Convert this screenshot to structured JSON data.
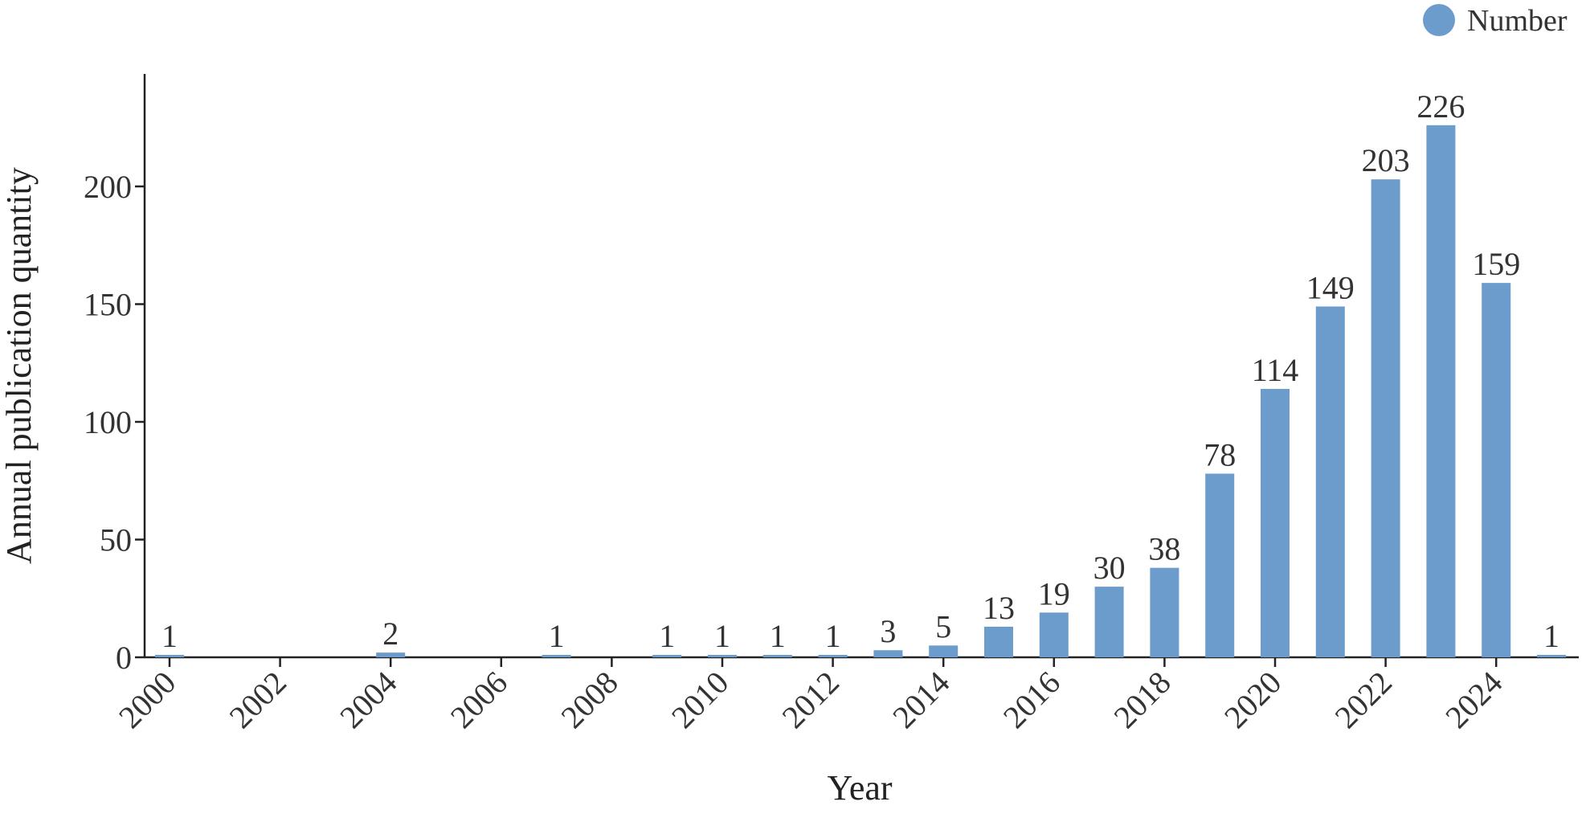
{
  "chart_data": {
    "type": "bar",
    "xlabel": "Year",
    "ylabel": "Annual publication quantity",
    "x_tick_labels": [
      "2000",
      "2002",
      "2004",
      "2006",
      "2008",
      "2010",
      "2012",
      "2014",
      "2016",
      "2018",
      "2020",
      "2022",
      "2024"
    ],
    "y_tick_labels": [
      "0",
      "50",
      "100",
      "150",
      "200"
    ],
    "ylim": [
      0,
      240
    ],
    "legend": {
      "position": "top-right",
      "entries": [
        "Number"
      ]
    },
    "grid": false,
    "series": [
      {
        "name": "Number",
        "color": "#6b9ccb",
        "points": [
          {
            "year": 2000,
            "value": 1
          },
          {
            "year": 2004,
            "value": 2
          },
          {
            "year": 2007,
            "value": 1
          },
          {
            "year": 2009,
            "value": 1
          },
          {
            "year": 2010,
            "value": 1
          },
          {
            "year": 2011,
            "value": 1
          },
          {
            "year": 2012,
            "value": 1
          },
          {
            "year": 2013,
            "value": 3
          },
          {
            "year": 2014,
            "value": 5
          },
          {
            "year": 2015,
            "value": 13
          },
          {
            "year": 2016,
            "value": 19
          },
          {
            "year": 2017,
            "value": 30
          },
          {
            "year": 2018,
            "value": 38
          },
          {
            "year": 2019,
            "value": 78
          },
          {
            "year": 2020,
            "value": 114
          },
          {
            "year": 2021,
            "value": 149
          },
          {
            "year": 2022,
            "value": 203
          },
          {
            "year": 2023,
            "value": 226
          },
          {
            "year": 2024,
            "value": 159
          },
          {
            "year": 2025,
            "value": 1
          }
        ]
      }
    ]
  }
}
